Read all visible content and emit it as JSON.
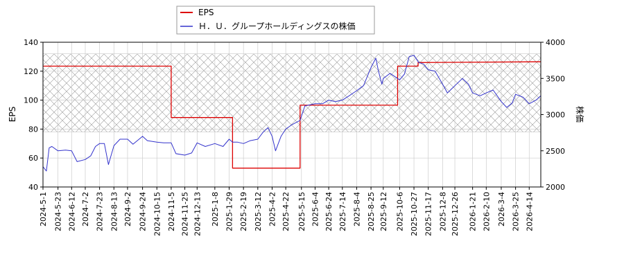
{
  "chart_data": {
    "type": "line",
    "title": "",
    "xlabel": "",
    "y1label": "EPS",
    "y2label": "株価",
    "y1lim": [
      40,
      140
    ],
    "y2lim": [
      2000,
      4000
    ],
    "y1ticks": [
      40,
      60,
      80,
      100,
      120,
      140
    ],
    "y2ticks": [
      2000,
      2500,
      3000,
      3500,
      4000
    ],
    "xlim": [
      "2024-05-01",
      "2026-05-01"
    ],
    "xticks": [
      "2024-5-1",
      "2024-5-23",
      "2024-6-12",
      "2024-7-2",
      "2024-7-23",
      "2024-8-13",
      "2024-9-2",
      "2024-9-24",
      "2024-10-15",
      "2024-11-5",
      "2024-11-25",
      "2024-12-13",
      "2025-1-8",
      "2025-1-29",
      "2025-2-19",
      "2025-3-12",
      "2025-4-2",
      "2025-4-22",
      "2025-5-15",
      "2025-6-4",
      "2025-6-24",
      "2025-7-14",
      "2025-8-4",
      "2025-8-25",
      "2025-9-12",
      "2025-10-6",
      "2025-10-27",
      "2025-11-17",
      "2025-12-8",
      "2025-12-26",
      "2026-1-21",
      "2026-2-10",
      "2026-3-4",
      "2026-3-25",
      "2026-4-14"
    ],
    "grid": true,
    "legend_position": "top-left",
    "band_eps_range": [
      78,
      132
    ],
    "series": [
      {
        "name": "EPS",
        "axis": "left",
        "color": "#dd0000",
        "step": true,
        "points": [
          [
            "2024-05-01",
            123.5
          ],
          [
            "2024-11-05",
            123.5
          ],
          [
            "2024-11-05",
            88
          ],
          [
            "2025-02-03",
            88
          ],
          [
            "2025-02-03",
            53
          ],
          [
            "2025-05-13",
            53
          ],
          [
            "2025-05-13",
            96.5
          ],
          [
            "2025-10-03",
            96.5
          ],
          [
            "2025-10-03",
            123.5
          ],
          [
            "2025-11-02",
            123.5
          ],
          [
            "2025-11-02",
            126
          ],
          [
            "2026-05-01",
            126.5
          ]
        ]
      },
      {
        "name": "Ｈ．Ｕ．グループホールディングスの株価",
        "axis": "right",
        "color": "#3333cc",
        "step": false,
        "points": [
          [
            "2024-05-01",
            2280
          ],
          [
            "2024-05-06",
            2220
          ],
          [
            "2024-05-10",
            2540
          ],
          [
            "2024-05-14",
            2560
          ],
          [
            "2024-05-23",
            2500
          ],
          [
            "2024-06-03",
            2510
          ],
          [
            "2024-06-12",
            2500
          ],
          [
            "2024-06-20",
            2350
          ],
          [
            "2024-07-02",
            2380
          ],
          [
            "2024-07-10",
            2430
          ],
          [
            "2024-07-17",
            2560
          ],
          [
            "2024-07-23",
            2600
          ],
          [
            "2024-07-30",
            2600
          ],
          [
            "2024-08-05",
            2310
          ],
          [
            "2024-08-13",
            2570
          ],
          [
            "2024-08-22",
            2660
          ],
          [
            "2024-09-02",
            2660
          ],
          [
            "2024-09-10",
            2590
          ],
          [
            "2024-09-24",
            2700
          ],
          [
            "2024-10-01",
            2640
          ],
          [
            "2024-10-15",
            2620
          ],
          [
            "2024-10-25",
            2610
          ],
          [
            "2024-11-05",
            2610
          ],
          [
            "2024-11-12",
            2460
          ],
          [
            "2024-11-25",
            2440
          ],
          [
            "2024-12-05",
            2470
          ],
          [
            "2024-12-13",
            2610
          ],
          [
            "2024-12-25",
            2560
          ],
          [
            "2025-01-08",
            2600
          ],
          [
            "2025-01-20",
            2560
          ],
          [
            "2025-01-29",
            2660
          ],
          [
            "2025-02-03",
            2620
          ],
          [
            "2025-02-10",
            2620
          ],
          [
            "2025-02-19",
            2600
          ],
          [
            "2025-03-01",
            2640
          ],
          [
            "2025-03-12",
            2660
          ],
          [
            "2025-03-20",
            2760
          ],
          [
            "2025-03-27",
            2820
          ],
          [
            "2025-04-02",
            2700
          ],
          [
            "2025-04-07",
            2500
          ],
          [
            "2025-04-15",
            2700
          ],
          [
            "2025-04-22",
            2800
          ],
          [
            "2025-05-01",
            2860
          ],
          [
            "2025-05-13",
            2920
          ],
          [
            "2025-05-20",
            3120
          ],
          [
            "2025-06-04",
            3150
          ],
          [
            "2025-06-15",
            3150
          ],
          [
            "2025-06-24",
            3200
          ],
          [
            "2025-07-04",
            3180
          ],
          [
            "2025-07-14",
            3200
          ],
          [
            "2025-07-24",
            3260
          ],
          [
            "2025-08-04",
            3330
          ],
          [
            "2025-08-14",
            3400
          ],
          [
            "2025-08-25",
            3650
          ],
          [
            "2025-09-01",
            3780
          ],
          [
            "2025-09-05",
            3600
          ],
          [
            "2025-09-10",
            3420
          ],
          [
            "2025-09-12",
            3500
          ],
          [
            "2025-09-22",
            3570
          ],
          [
            "2025-10-06",
            3480
          ],
          [
            "2025-10-13",
            3560
          ],
          [
            "2025-10-20",
            3800
          ],
          [
            "2025-10-27",
            3820
          ],
          [
            "2025-11-03",
            3720
          ],
          [
            "2025-11-10",
            3700
          ],
          [
            "2025-11-17",
            3620
          ],
          [
            "2025-11-27",
            3600
          ],
          [
            "2025-12-08",
            3420
          ],
          [
            "2025-12-15",
            3300
          ],
          [
            "2025-12-26",
            3400
          ],
          [
            "2026-01-06",
            3500
          ],
          [
            "2026-01-15",
            3420
          ],
          [
            "2026-01-21",
            3300
          ],
          [
            "2026-02-01",
            3260
          ],
          [
            "2026-02-10",
            3300
          ],
          [
            "2026-02-20",
            3340
          ],
          [
            "2026-03-04",
            3180
          ],
          [
            "2026-03-12",
            3100
          ],
          [
            "2026-03-20",
            3160
          ],
          [
            "2026-03-25",
            3280
          ],
          [
            "2026-04-05",
            3240
          ],
          [
            "2026-04-14",
            3150
          ],
          [
            "2026-04-24",
            3200
          ],
          [
            "2026-05-01",
            3260
          ]
        ]
      }
    ]
  }
}
